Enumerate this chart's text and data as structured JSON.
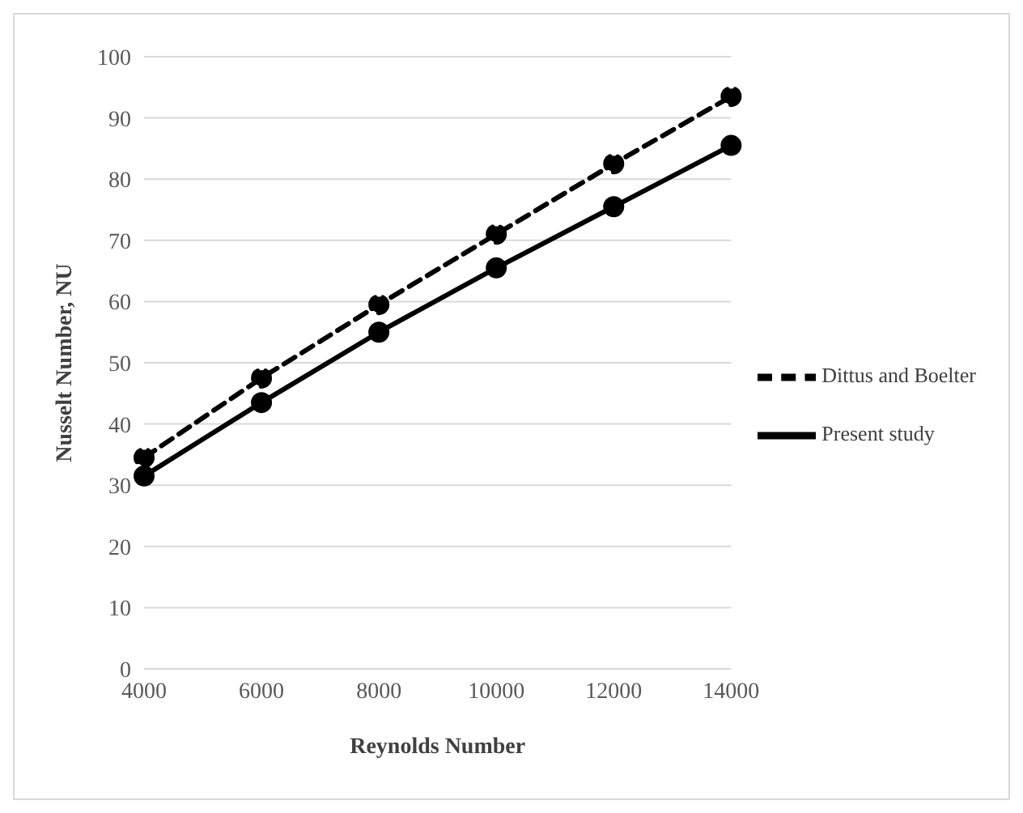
{
  "chart_data": {
    "type": "line",
    "xlabel": "Reynolds Number",
    "ylabel": "Nusselt Number, NU",
    "categories": [
      "4000",
      "6000",
      "8000",
      "10000",
      "12000",
      "14000"
    ],
    "series": [
      {
        "name": "Present study",
        "color": "#000000",
        "line_style": "solid",
        "values": [
          31.5,
          43.5,
          55,
          65.5,
          75.5,
          85.5
        ]
      },
      {
        "name": "Dittus and Boelter",
        "color": "#000000",
        "line_style": "dashed",
        "values": [
          34.5,
          47.5,
          59.5,
          71,
          82.5,
          93.5
        ]
      }
    ],
    "ylim": [
      0,
      100
    ],
    "yticks": [
      0,
      10,
      20,
      30,
      40,
      50,
      60,
      70,
      80,
      90,
      100
    ],
    "grid": "y",
    "legend": "right",
    "marker": "circle"
  }
}
